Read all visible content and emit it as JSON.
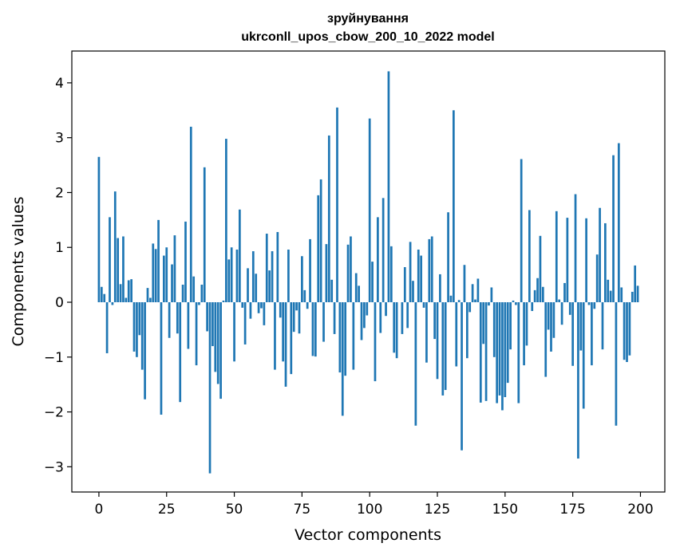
{
  "chart_data": {
    "type": "bar",
    "title_line1": "зруйнування",
    "title_line2": "ukrconll_upos_cbow_200_10_2022 model",
    "xlabel": "Vector components",
    "ylabel": "Components values",
    "xlim": [
      -10,
      209
    ],
    "ylim": [
      -3.46,
      4.58
    ],
    "xticks": [
      0,
      25,
      50,
      75,
      100,
      125,
      150,
      175,
      200
    ],
    "xtick_labels": [
      "0",
      "25",
      "50",
      "75",
      "100",
      "125",
      "150",
      "175",
      "200"
    ],
    "yticks": [
      -3,
      -2,
      -1,
      0,
      1,
      2,
      3,
      4
    ],
    "ytick_labels": [
      "−3",
      "−2",
      "−1",
      "0",
      "1",
      "2",
      "3",
      "4"
    ],
    "grid": false,
    "bar_color": "#1f77b4",
    "x": [
      0,
      1,
      2,
      3,
      4,
      5,
      6,
      7,
      8,
      9,
      10,
      11,
      12,
      13,
      14,
      15,
      16,
      17,
      18,
      19,
      20,
      21,
      22,
      23,
      24,
      25,
      26,
      27,
      28,
      29,
      30,
      31,
      32,
      33,
      34,
      35,
      36,
      37,
      38,
      39,
      40,
      41,
      42,
      43,
      44,
      45,
      46,
      47,
      48,
      49,
      50,
      51,
      52,
      53,
      54,
      55,
      56,
      57,
      58,
      59,
      60,
      61,
      62,
      63,
      64,
      65,
      66,
      67,
      68,
      69,
      70,
      71,
      72,
      73,
      74,
      75,
      76,
      77,
      78,
      79,
      80,
      81,
      82,
      83,
      84,
      85,
      86,
      87,
      88,
      89,
      90,
      91,
      92,
      93,
      94,
      95,
      96,
      97,
      98,
      99,
      100,
      101,
      102,
      103,
      104,
      105,
      106,
      107,
      108,
      109,
      110,
      111,
      112,
      113,
      114,
      115,
      116,
      117,
      118,
      119,
      120,
      121,
      122,
      123,
      124,
      125,
      126,
      127,
      128,
      129,
      130,
      131,
      132,
      133,
      134,
      135,
      136,
      137,
      138,
      139,
      140,
      141,
      142,
      143,
      144,
      145,
      146,
      147,
      148,
      149,
      150,
      151,
      152,
      153,
      154,
      155,
      156,
      157,
      158,
      159,
      160,
      161,
      162,
      163,
      164,
      165,
      166,
      167,
      168,
      169,
      170,
      171,
      172,
      173,
      174,
      175,
      176,
      177,
      178,
      179,
      180,
      181,
      182,
      183,
      184,
      185,
      186,
      187,
      188,
      189,
      190,
      191,
      192,
      193,
      194,
      195,
      196,
      197,
      198,
      199
    ],
    "values": [
      2.65,
      0.28,
      0.15,
      -0.93,
      1.55,
      -0.05,
      2.02,
      1.17,
      0.33,
      1.2,
      0.08,
      0.4,
      0.42,
      -0.9,
      -1.0,
      -0.6,
      -1.23,
      -1.77,
      0.26,
      0.08,
      1.07,
      0.97,
      1.5,
      -2.05,
      0.85,
      1.0,
      -0.65,
      0.69,
      1.22,
      -0.57,
      -1.82,
      0.32,
      1.47,
      -0.85,
      3.2,
      0.47,
      -1.15,
      -0.05,
      0.32,
      2.46,
      -0.53,
      -3.12,
      -0.8,
      -1.27,
      -1.49,
      -1.76,
      0.03,
      2.98,
      0.78,
      1.0,
      -1.08,
      0.96,
      1.69,
      -0.1,
      -0.77,
      0.62,
      -0.3,
      0.93,
      0.52,
      -0.2,
      -0.11,
      -0.42,
      1.25,
      0.58,
      0.93,
      -1.23,
      1.28,
      -0.28,
      -1.08,
      -1.54,
      0.96,
      -1.31,
      -0.54,
      -0.15,
      -0.57,
      0.84,
      0.22,
      -0.12,
      1.15,
      -0.98,
      -0.99,
      1.95,
      2.24,
      -0.72,
      1.06,
      3.04,
      0.41,
      -0.58,
      3.55,
      -1.28,
      -2.07,
      -1.34,
      1.05,
      1.2,
      -1.23,
      0.53,
      0.3,
      -0.69,
      -0.47,
      -0.24,
      3.35,
      0.74,
      -1.44,
      1.55,
      -0.56,
      1.9,
      -0.25,
      4.21,
      1.02,
      -0.92,
      -1.02,
      0.0,
      -0.58,
      0.64,
      -0.47,
      1.1,
      0.39,
      -2.25,
      0.96,
      0.85,
      -0.1,
      -1.1,
      1.15,
      1.2,
      -0.67,
      -1.4,
      0.51,
      -1.7,
      -1.6,
      1.64,
      0.12,
      3.5,
      -1.17,
      0.04,
      -2.7,
      0.68,
      -1.02,
      -0.18,
      0.33,
      0.05,
      0.43,
      -1.83,
      -0.76,
      -1.8,
      -0.06,
      0.27,
      -1.0,
      -1.84,
      -1.7,
      -1.97,
      -1.73,
      -1.47,
      -0.86,
      0.03,
      -0.05,
      -1.84,
      2.61,
      -1.15,
      -0.79,
      1.68,
      -0.16,
      0.22,
      0.44,
      1.21,
      0.28,
      -1.36,
      -0.5,
      -0.9,
      -0.65,
      1.66,
      0.05,
      -0.41,
      0.35,
      1.54,
      -0.23,
      -1.16,
      1.97,
      -2.85,
      -0.88,
      -1.94,
      1.53,
      -0.05,
      -1.15,
      -0.12,
      0.87,
      1.72,
      -0.86,
      1.44,
      0.41,
      0.21,
      2.68,
      -2.25,
      2.9,
      0.27,
      -1.05,
      -1.09,
      -0.97,
      0.19,
      0.67,
      0.3
    ]
  }
}
